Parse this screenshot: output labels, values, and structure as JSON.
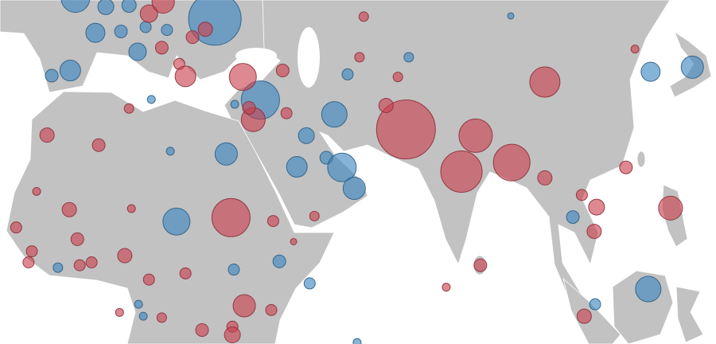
{
  "map": {
    "type": "bubble-map",
    "series": [
      {
        "color": "#3b86c0",
        "lon": [
          -3.6,
          2.8,
          7.7,
          25.8,
          0.6,
          6.0,
          11.2,
          15.7,
          9.5,
          -4.7,
          -8.6,
          35.4,
          30.0,
          66.7,
          53.8,
          117.7,
          126.5,
          51.0,
          45.1,
          43.1,
          49.3,
          52.6,
          55.2,
          28.2,
          17.7,
          16.4,
          12.4,
          -7.3,
          29.8,
          39.4,
          45.8,
          10.7,
          9.7,
          101.3,
          117.2,
          106.0,
          55.8,
          88.2
        ],
        "lat": [
          53.3,
          52.2,
          52.4,
          50.6,
          48.7,
          48.9,
          49.5,
          49.1,
          46.0,
          43.2,
          42.4,
          38.5,
          37.8,
          45.2,
          42.6,
          43.0,
          43.7,
          36.1,
          32.4,
          26.7,
          28.4,
          26.6,
          22.6,
          29.1,
          16.0,
          29.6,
          38.6,
          6.5,
          6.1,
          7.8,
          3.2,
          -3.7,
          -1.2,
          16.9,
          2.0,
          -1.2,
          -9.2,
          51.0
        ],
        "size": [
          18,
          10,
          9,
          33,
          12,
          8,
          7,
          7,
          11,
          13,
          8,
          24,
          5,
          6,
          7,
          12,
          14,
          16,
          10,
          13,
          8,
          18,
          14,
          14,
          17,
          5,
          5,
          6,
          7,
          8,
          7,
          5,
          5,
          8,
          16,
          7,
          5,
          4
        ]
      },
      {
        "color": "#c9404f",
        "lon": [
          11.9,
          14.9,
          23.8,
          21.1,
          14.6,
          18.3,
          19.6,
          31.7,
          33.9,
          33.0,
          40.1,
          57.2,
          56.3,
          64.4,
          95.4,
          114.4,
          40.9,
          66.1,
          61.9,
          80.8,
          77.8,
          88.4,
          95.4,
          29.2,
          1.3,
          -9.6,
          7.7,
          -4.9,
          -11.8,
          8.2,
          38.1,
          46.8,
          -3.2,
          -16.1,
          -12.8,
          -13.5,
          -2.7,
          -0.2,
          6.8,
          11.9,
          19.6,
          32.0,
          37.7,
          23.1,
          29.5,
          29.5,
          14.6,
          5.7,
          103.2,
          106.3,
          105.8,
          112.5,
          121.9,
          103.7,
          81.8,
          74.6,
          42.4
        ],
        "lat": [
          51.3,
          52.8,
          49.2,
          48.1,
          46.6,
          44.2,
          42.3,
          42.2,
          35.2,
          37.2,
          43.2,
          50.9,
          45.2,
          42.2,
          41.4,
          46.4,
          36.3,
          33.5,
          37.6,
          32.4,
          25.8,
          27.5,
          24.6,
          16.8,
          30.7,
          32.5,
          37.1,
          18.4,
          22.0,
          18.6,
          16.1,
          17.1,
          12.4,
          14.8,
          9.9,
          7.6,
          7.0,
          7.6,
          9.0,
          4.0,
          5.3,
          -1.5,
          -2.4,
          -6.6,
          -5.9,
          -7.6,
          -4.0,
          -2.9,
          21.3,
          18.9,
          14.0,
          26.6,
          18.7,
          -3.7,
          7.0,
          2.4,
          11.9
        ],
        "size": [
          11,
          14,
          9,
          8,
          8,
          7,
          13,
          17,
          15,
          8,
          8,
          6,
          6,
          6,
          19,
          5,
          7,
          37,
          9,
          21,
          26,
          23,
          9,
          24,
          8,
          9,
          6,
          9,
          5,
          5,
          7,
          6,
          8,
          7,
          7,
          7,
          7,
          7,
          9,
          7,
          7,
          14,
          7,
          8,
          7,
          10,
          6,
          5,
          7,
          10,
          9,
          8,
          15,
          9,
          8,
          5,
          4
        ]
      }
    ]
  }
}
